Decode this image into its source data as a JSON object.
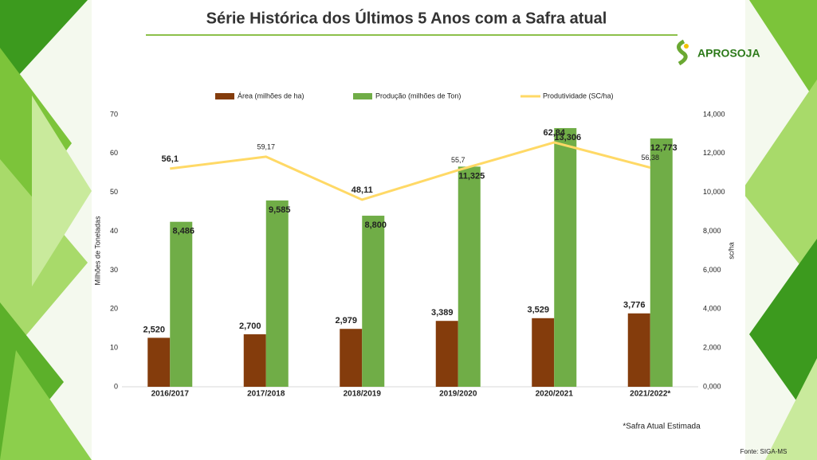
{
  "chart_data": {
    "type": "bar",
    "title": "Série Histórica dos Últimos 5 Anos com a Safra atual",
    "categories": [
      "2016/2017",
      "2017/2018",
      "2018/2019",
      "2019/2020",
      "2020/2021",
      "2021/2022*"
    ],
    "series": [
      {
        "name": "Área (milhões de ha)",
        "color": "#843c0c",
        "axis": "y2",
        "values": [
          2520,
          2700,
          2979,
          3389,
          3529,
          3776
        ],
        "value_labels": [
          "2,520",
          "2,700",
          "2,979",
          "3,389",
          "3,529",
          "3,776"
        ]
      },
      {
        "name": "Produção (milhões de Ton)",
        "color": "#70ad47",
        "axis": "y2",
        "values": [
          8486,
          9585,
          8800,
          11325,
          13306,
          12773
        ],
        "value_labels": [
          "8,486",
          "9,585",
          "8,800",
          "11,325",
          "13,306",
          "12,773"
        ]
      },
      {
        "name": "Produtividade (SC/ha)",
        "color": "#ffd966",
        "type": "line",
        "axis": "y",
        "values": [
          56.1,
          59.17,
          48.11,
          55.7,
          62.84,
          56.38
        ],
        "value_labels": [
          "56,1",
          "59,17",
          "48,11",
          "55,7",
          "62,84",
          "56,38"
        ]
      }
    ],
    "ylabel": "Milhões de Toneladas",
    "y2label": "sc/ha",
    "ylim": [
      0,
      70
    ],
    "yticks": [
      0,
      10,
      20,
      30,
      40,
      50,
      60,
      70
    ],
    "y2lim": [
      0,
      14000
    ],
    "y2ticks": [
      {
        "value": 0,
        "label": "0,000"
      },
      {
        "value": 2000,
        "label": "2,000"
      },
      {
        "value": 4000,
        "label": "4,000"
      },
      {
        "value": 6000,
        "label": "6,000"
      },
      {
        "value": 8000,
        "label": "8,000"
      },
      {
        "value": 10000,
        "label": "10,000"
      },
      {
        "value": 12000,
        "label": "12,000"
      },
      {
        "value": 14000,
        "label": "14,000"
      }
    ],
    "legend": "top",
    "footnote": "*Safra Atual Estimada",
    "source": "Fonte: SIGA-MS"
  },
  "logo": {
    "name": "APROSOJA"
  }
}
